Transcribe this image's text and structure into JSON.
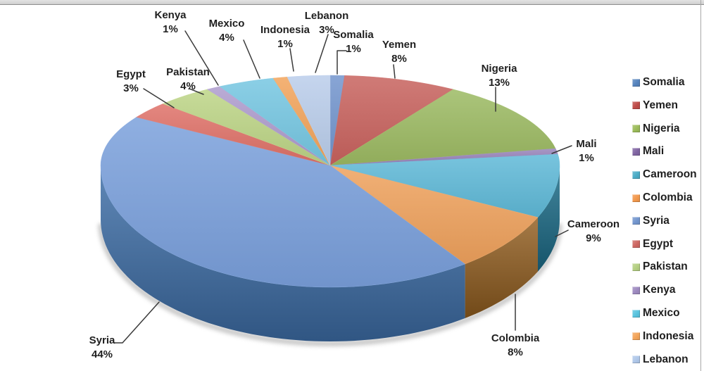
{
  "window": {
    "top_bar_color": "#D6D6D6",
    "border_color": "#9A9A9A",
    "background": "#FFFFFF",
    "label_text_color": "#1F1F1F",
    "leader_line_color": "#3A3A3A"
  },
  "chart_data": {
    "type": "pie",
    "style": "3d",
    "unit": "percent",
    "title": "",
    "start_angle_deg": 0,
    "clockwise": true,
    "legend_position": "right",
    "items": [
      {
        "name": "Somalia",
        "value": 1,
        "pct": "1%",
        "color": "#5583BD",
        "pie_color": "#7295CD"
      },
      {
        "name": "Yemen",
        "value": 8,
        "pct": "8%",
        "color": "#BE4B48",
        "pie_color": "#C8625E"
      },
      {
        "name": "Nigeria",
        "value": 13,
        "pct": "13%",
        "color": "#9BBB59",
        "pie_color": "#9CBA62"
      },
      {
        "name": "Mali",
        "value": 1,
        "pct": "1%",
        "color": "#8064A2",
        "pie_color": "#9884BA"
      },
      {
        "name": "Cameroon",
        "value": 9,
        "pct": "9%",
        "color": "#4BACC6",
        "pie_color": "#5FB9D8",
        "side_color": "#1B6C88"
      },
      {
        "name": "Colombia",
        "value": 8,
        "pct": "8%",
        "color": "#F2984B",
        "pie_color": "#EFA25D",
        "side_color": "#925E1F"
      },
      {
        "name": "Syria",
        "value": 44,
        "pct": "44%",
        "color": "#7396CE",
        "pie_color": "#7AA0DC",
        "side_color": "#3E6FA8"
      },
      {
        "name": "Egypt",
        "value": 3,
        "pct": "3%",
        "color": "#CD6661",
        "pie_color": "#DF7168"
      },
      {
        "name": "Pakistan",
        "value": 4,
        "pct": "4%",
        "color": "#B4CF82",
        "pie_color": "#BDD586"
      },
      {
        "name": "Kenya",
        "value": 1,
        "pct": "1%",
        "color": "#9D89BF",
        "pie_color": "#AE9BCD"
      },
      {
        "name": "Mexico",
        "value": 4,
        "pct": "4%",
        "color": "#58C3DE",
        "pie_color": "#76C7E2"
      },
      {
        "name": "Indonesia",
        "value": 1,
        "pct": "1%",
        "color": "#F3A459",
        "pie_color": "#F2A45B"
      },
      {
        "name": "Lebanon",
        "value": 3,
        "pct": "3%",
        "color": "#AFC7E9",
        "pie_color": "#BACEEB"
      }
    ]
  }
}
